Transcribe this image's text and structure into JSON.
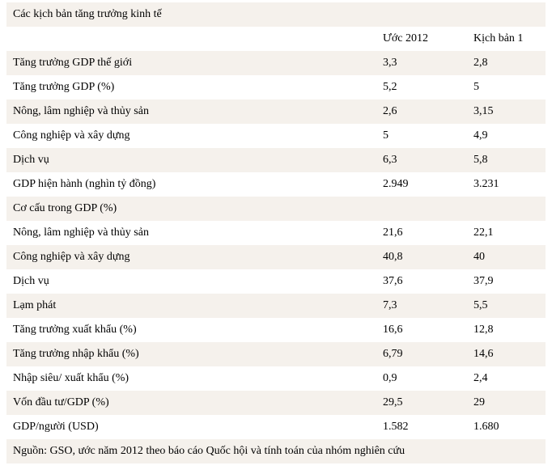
{
  "table": {
    "title": "Các kịch bản tăng trưởng kinh tế",
    "col_headers": {
      "metric": "",
      "uoc_2012": "Ước 2012",
      "kich_ban_1": "Kịch bản 1"
    },
    "rows": [
      {
        "label": "Tăng trưởng GDP thế giới",
        "uoc_2012": "3,3",
        "kich_ban_1": "2,8"
      },
      {
        "label": "Tăng trưởng GDP (%)",
        "uoc_2012": "5,2",
        "kich_ban_1": "5"
      },
      {
        "label": "Nông, lâm nghiệp và thủy sản",
        "uoc_2012": "2,6",
        "kich_ban_1": "3,15"
      },
      {
        "label": "Công nghiệp và xây dựng",
        "uoc_2012": "5",
        "kich_ban_1": "4,9"
      },
      {
        "label": "Dịch vụ",
        "uoc_2012": "6,3",
        "kich_ban_1": "5,8"
      },
      {
        "label": "GDP hiện hành (nghìn tỷ đồng)",
        "uoc_2012": "2.949",
        "kich_ban_1": "3.231"
      },
      {
        "label": "Cơ cấu trong GDP (%)",
        "uoc_2012": "",
        "kich_ban_1": ""
      },
      {
        "label": "Nông, lâm nghiệp và thủy sản",
        "uoc_2012": "21,6",
        "kich_ban_1": "22,1"
      },
      {
        "label": "Công nghiệp và xây dựng",
        "uoc_2012": "40,8",
        "kich_ban_1": "40"
      },
      {
        "label": "Dịch vụ",
        "uoc_2012": "37,6",
        "kich_ban_1": "37,9"
      },
      {
        "label": "Lạm phát",
        "uoc_2012": "7,3",
        "kich_ban_1": "5,5"
      },
      {
        "label": "Tăng trưởng xuất khẩu (%)",
        "uoc_2012": "16,6",
        "kich_ban_1": "12,8"
      },
      {
        "label": "Tăng trưởng nhập khẩu (%)",
        "uoc_2012": "6,79",
        "kich_ban_1": "14,6"
      },
      {
        "label": "Nhập siêu/ xuất khẩu (%)",
        "uoc_2012": "0,9",
        "kich_ban_1": "2,4"
      },
      {
        "label": "Vốn đầu tư/GDP (%)",
        "uoc_2012": "29,5",
        "kich_ban_1": "29"
      },
      {
        "label": "GDP/người (USD)",
        "uoc_2012": "1.582",
        "kich_ban_1": "1.680"
      }
    ],
    "source_note": "Nguồn: GSO, ước năm 2012 theo báo cáo Quốc hội và tính toán của nhóm nghiên cứu"
  },
  "colors": {
    "row_shaded": "#f5f1ec",
    "row_white": "#ffffff",
    "text": "#000000"
  }
}
